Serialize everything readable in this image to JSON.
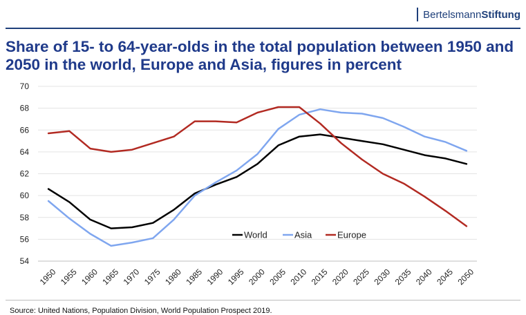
{
  "brand": {
    "name_light": "Bertelsmann",
    "name_bold": "Stiftung"
  },
  "header": {
    "title": "Share of 15- to 64-year-olds in the total population between 1950 and 2050 in the world, Europe and Asia, figures in percent"
  },
  "footer": {
    "source": "Source: United Nations, Population Division, World Population Prospect 2019."
  },
  "chart_data": {
    "type": "line",
    "title": "Share of 15- to 64-year-olds in the total population between 1950 and 2050 in the world, Europe and Asia, figures in percent",
    "xlabel": "",
    "ylabel": "",
    "x": [
      "1950",
      "1955",
      "1960",
      "1965",
      "1970",
      "1975",
      "1980",
      "1985",
      "1990",
      "1995",
      "2000",
      "2005",
      "2010",
      "2015",
      "2020",
      "2025",
      "2030",
      "2035",
      "2040",
      "2045",
      "2050"
    ],
    "ylim": [
      54,
      70
    ],
    "yticks": [
      54,
      56,
      58,
      60,
      62,
      64,
      66,
      68,
      70
    ],
    "grid": true,
    "legend_position": "center-right, inside plot",
    "series": [
      {
        "name": "World",
        "color": "#000000",
        "values": [
          60.6,
          59.4,
          57.8,
          57.0,
          57.1,
          57.5,
          58.7,
          60.2,
          61.0,
          61.7,
          62.9,
          64.6,
          65.4,
          65.6,
          65.3,
          65.0,
          64.7,
          64.2,
          63.7,
          63.4,
          62.9
        ]
      },
      {
        "name": "Asia",
        "color": "#7fa6ef",
        "values": [
          59.5,
          57.9,
          56.5,
          55.4,
          55.7,
          56.1,
          57.8,
          60.0,
          61.2,
          62.3,
          63.8,
          66.1,
          67.4,
          67.9,
          67.6,
          67.5,
          67.1,
          66.3,
          65.4,
          64.9,
          64.1
        ]
      },
      {
        "name": "Europe",
        "color": "#b22a22",
        "values": [
          65.7,
          65.9,
          64.3,
          64.0,
          64.2,
          64.8,
          65.4,
          66.8,
          66.8,
          66.7,
          67.6,
          68.1,
          68.1,
          66.6,
          64.8,
          63.3,
          62.0,
          61.1,
          59.9,
          58.6,
          57.2
        ]
      }
    ]
  }
}
